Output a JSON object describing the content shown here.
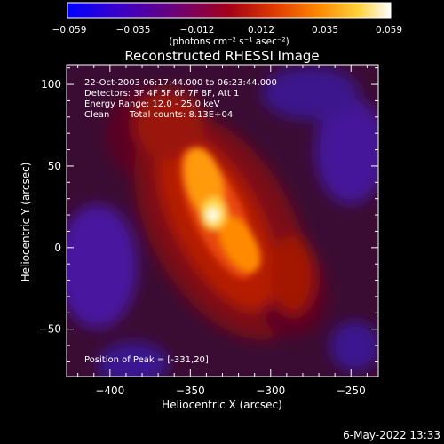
{
  "colorbar": {
    "ticks": [
      "−0.059",
      "−0.035",
      "−0.012",
      "0.012",
      "0.035",
      "0.059"
    ],
    "units": "(photons cm⁻² s⁻¹ asec⁻²)",
    "colors": [
      "#0000ff",
      "#3a00c8",
      "#6a007a",
      "#a30018",
      "#e03a00",
      "#ff8a00",
      "#ffd23a",
      "#ffffff"
    ]
  },
  "chart_data": {
    "type": "heatmap",
    "title": "Reconstructed RHESSI Image",
    "xlabel": "Heliocentric X (arcsec)",
    "ylabel": "Heliocentric Y (arcsec)",
    "xlim": [
      -427,
      -233
    ],
    "ylim": [
      -79,
      112
    ],
    "xticks": [
      -400,
      -350,
      -300,
      -250
    ],
    "xtick_labels": [
      "−400",
      "−350",
      "−300",
      "−250"
    ],
    "yticks": [
      100,
      50,
      0,
      -50
    ],
    "ytick_labels": [
      "100",
      "50",
      "0",
      "−50"
    ],
    "colorbar_range": [
      -0.059,
      0.059
    ],
    "peak": [
      -331,
      20
    ],
    "annotations": [
      "22-Oct-2003 06:17:44.000 to 06:23:44.000",
      "Detectors: 3F 4F 5F 6F 7F 8F, Att 1",
      "Energy Range: 12.0 - 25.0 keV",
      "Clean",
      "Total counts: 8.13E+04",
      "Position of Peak = [-331,20]"
    ]
  },
  "footer": {
    "date": "6-May-2022 13:33"
  }
}
